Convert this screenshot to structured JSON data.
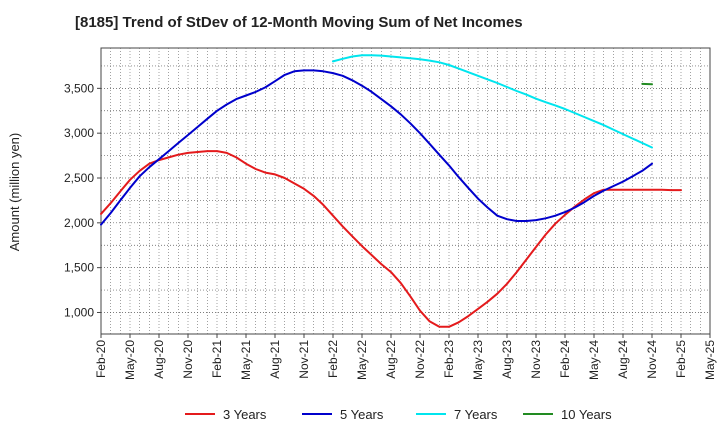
{
  "chart_data": {
    "type": "line",
    "title": "[8185]  Trend of StDev of 12-Month Moving Sum of Net Incomes",
    "xlabel": "",
    "ylabel": "Amount (million yen)",
    "ylim": [
      760,
      3950
    ],
    "y_ticks": [
      1000,
      1500,
      2000,
      2500,
      3000,
      3500
    ],
    "y_tick_labels": [
      "1,000",
      "1,500",
      "2,000",
      "2,500",
      "3,000",
      "3,500"
    ],
    "x_tick_labels": [
      "Feb-20",
      "May-20",
      "Aug-20",
      "Nov-20",
      "Feb-21",
      "May-21",
      "Aug-21",
      "Nov-21",
      "Feb-22",
      "May-22",
      "Aug-22",
      "Nov-22",
      "Feb-23",
      "May-23",
      "Aug-23",
      "Nov-23",
      "Feb-24",
      "May-24",
      "Aug-24",
      "Nov-24",
      "Feb-25",
      "May-25"
    ],
    "grid": true,
    "legend_position": "bottom",
    "series": [
      {
        "name": "3 Years",
        "color": "#e41a1c",
        "points": [
          [
            "Feb-20",
            2100
          ],
          [
            "Mar-20",
            2220
          ],
          [
            "Apr-20",
            2350
          ],
          [
            "May-20",
            2480
          ],
          [
            "Jun-20",
            2580
          ],
          [
            "Jul-20",
            2660
          ],
          [
            "Aug-20",
            2700
          ],
          [
            "Sep-20",
            2730
          ],
          [
            "Oct-20",
            2760
          ],
          [
            "Nov-20",
            2780
          ],
          [
            "Dec-20",
            2790
          ],
          [
            "Jan-21",
            2800
          ],
          [
            "Feb-21",
            2800
          ],
          [
            "Mar-21",
            2780
          ],
          [
            "Apr-21",
            2730
          ],
          [
            "May-21",
            2660
          ],
          [
            "Jun-21",
            2600
          ],
          [
            "Jul-21",
            2560
          ],
          [
            "Aug-21",
            2540
          ],
          [
            "Sep-21",
            2500
          ],
          [
            "Oct-21",
            2440
          ],
          [
            "Nov-21",
            2380
          ],
          [
            "Dec-21",
            2300
          ],
          [
            "Jan-22",
            2200
          ],
          [
            "Feb-22",
            2080
          ],
          [
            "Mar-22",
            1960
          ],
          [
            "Apr-22",
            1850
          ],
          [
            "May-22",
            1740
          ],
          [
            "Jun-22",
            1640
          ],
          [
            "Jul-22",
            1540
          ],
          [
            "Aug-22",
            1450
          ],
          [
            "Sep-22",
            1330
          ],
          [
            "Oct-22",
            1180
          ],
          [
            "Nov-22",
            1020
          ],
          [
            "Dec-22",
            900
          ],
          [
            "Jan-23",
            840
          ],
          [
            "Feb-23",
            840
          ],
          [
            "Mar-23",
            890
          ],
          [
            "Apr-23",
            960
          ],
          [
            "May-23",
            1040
          ],
          [
            "Jun-23",
            1120
          ],
          [
            "Jul-23",
            1210
          ],
          [
            "Aug-23",
            1320
          ],
          [
            "Sep-23",
            1450
          ],
          [
            "Oct-23",
            1590
          ],
          [
            "Nov-23",
            1730
          ],
          [
            "Dec-23",
            1870
          ],
          [
            "Jan-24",
            1990
          ],
          [
            "Feb-24",
            2090
          ],
          [
            "Mar-24",
            2180
          ],
          [
            "Apr-24",
            2260
          ],
          [
            "May-24",
            2330
          ],
          [
            "Jun-24",
            2370
          ],
          [
            "Jul-24",
            2370
          ],
          [
            "Aug-24",
            2370
          ],
          [
            "Sep-24",
            2370
          ],
          [
            "Oct-24",
            2370
          ],
          [
            "Nov-24",
            2370
          ],
          [
            "Dec-24",
            2370
          ],
          [
            "Jan-25",
            2365
          ],
          [
            "Feb-25",
            2365
          ]
        ]
      },
      {
        "name": "5 Years",
        "color": "#0000cc",
        "points": [
          [
            "Feb-20",
            1980
          ],
          [
            "Mar-20",
            2110
          ],
          [
            "Apr-20",
            2250
          ],
          [
            "May-20",
            2390
          ],
          [
            "Jun-20",
            2520
          ],
          [
            "Jul-20",
            2620
          ],
          [
            "Aug-20",
            2710
          ],
          [
            "Sep-20",
            2800
          ],
          [
            "Oct-20",
            2890
          ],
          [
            "Nov-20",
            2980
          ],
          [
            "Dec-20",
            3070
          ],
          [
            "Jan-21",
            3160
          ],
          [
            "Feb-21",
            3250
          ],
          [
            "Mar-21",
            3320
          ],
          [
            "Apr-21",
            3380
          ],
          [
            "May-21",
            3420
          ],
          [
            "Jun-21",
            3460
          ],
          [
            "Jul-21",
            3510
          ],
          [
            "Aug-21",
            3580
          ],
          [
            "Sep-21",
            3650
          ],
          [
            "Oct-21",
            3690
          ],
          [
            "Nov-21",
            3700
          ],
          [
            "Dec-21",
            3700
          ],
          [
            "Jan-22",
            3690
          ],
          [
            "Feb-22",
            3670
          ],
          [
            "Mar-22",
            3640
          ],
          [
            "Apr-22",
            3590
          ],
          [
            "May-22",
            3530
          ],
          [
            "Jun-22",
            3460
          ],
          [
            "Jul-22",
            3380
          ],
          [
            "Aug-22",
            3300
          ],
          [
            "Sep-22",
            3210
          ],
          [
            "Oct-22",
            3110
          ],
          [
            "Nov-22",
            3000
          ],
          [
            "Dec-22",
            2880
          ],
          [
            "Jan-23",
            2760
          ],
          [
            "Feb-23",
            2640
          ],
          [
            "Mar-23",
            2510
          ],
          [
            "Apr-23",
            2390
          ],
          [
            "May-23",
            2270
          ],
          [
            "Jun-23",
            2170
          ],
          [
            "Jul-23",
            2080
          ],
          [
            "Aug-23",
            2040
          ],
          [
            "Sep-23",
            2020
          ],
          [
            "Oct-23",
            2020
          ],
          [
            "Nov-23",
            2030
          ],
          [
            "Dec-23",
            2050
          ],
          [
            "Jan-24",
            2080
          ],
          [
            "Feb-24",
            2120
          ],
          [
            "Mar-24",
            2170
          ],
          [
            "Apr-24",
            2230
          ],
          [
            "May-24",
            2300
          ],
          [
            "Jun-24",
            2360
          ],
          [
            "Jul-24",
            2410
          ],
          [
            "Aug-24",
            2460
          ],
          [
            "Sep-24",
            2520
          ],
          [
            "Oct-24",
            2580
          ],
          [
            "Nov-24",
            2660
          ]
        ]
      },
      {
        "name": "7 Years",
        "color": "#00e5ee",
        "points": [
          [
            "Feb-22",
            3800
          ],
          [
            "Mar-22",
            3830
          ],
          [
            "Apr-22",
            3855
          ],
          [
            "May-22",
            3870
          ],
          [
            "Jun-22",
            3870
          ],
          [
            "Jul-22",
            3865
          ],
          [
            "Aug-22",
            3855
          ],
          [
            "Sep-22",
            3845
          ],
          [
            "Oct-22",
            3835
          ],
          [
            "Nov-22",
            3825
          ],
          [
            "Dec-22",
            3810
          ],
          [
            "Jan-23",
            3790
          ],
          [
            "Feb-23",
            3760
          ],
          [
            "Mar-23",
            3720
          ],
          [
            "Apr-23",
            3680
          ],
          [
            "May-23",
            3640
          ],
          [
            "Jun-23",
            3600
          ],
          [
            "Jul-23",
            3560
          ],
          [
            "Aug-23",
            3515
          ],
          [
            "Sep-23",
            3470
          ],
          [
            "Oct-23",
            3430
          ],
          [
            "Nov-23",
            3385
          ],
          [
            "Dec-23",
            3345
          ],
          [
            "Jan-24",
            3310
          ],
          [
            "Feb-24",
            3270
          ],
          [
            "Mar-24",
            3225
          ],
          [
            "Apr-24",
            3180
          ],
          [
            "May-24",
            3135
          ],
          [
            "Jun-24",
            3090
          ],
          [
            "Jul-24",
            3040
          ],
          [
            "Aug-24",
            2990
          ],
          [
            "Sep-24",
            2940
          ],
          [
            "Oct-24",
            2890
          ],
          [
            "Nov-24",
            2840
          ]
        ]
      },
      {
        "name": "10 Years",
        "color": "#228b22",
        "points": [
          [
            "Oct-24",
            3550
          ],
          [
            "Nov-24",
            3545
          ]
        ]
      }
    ]
  }
}
